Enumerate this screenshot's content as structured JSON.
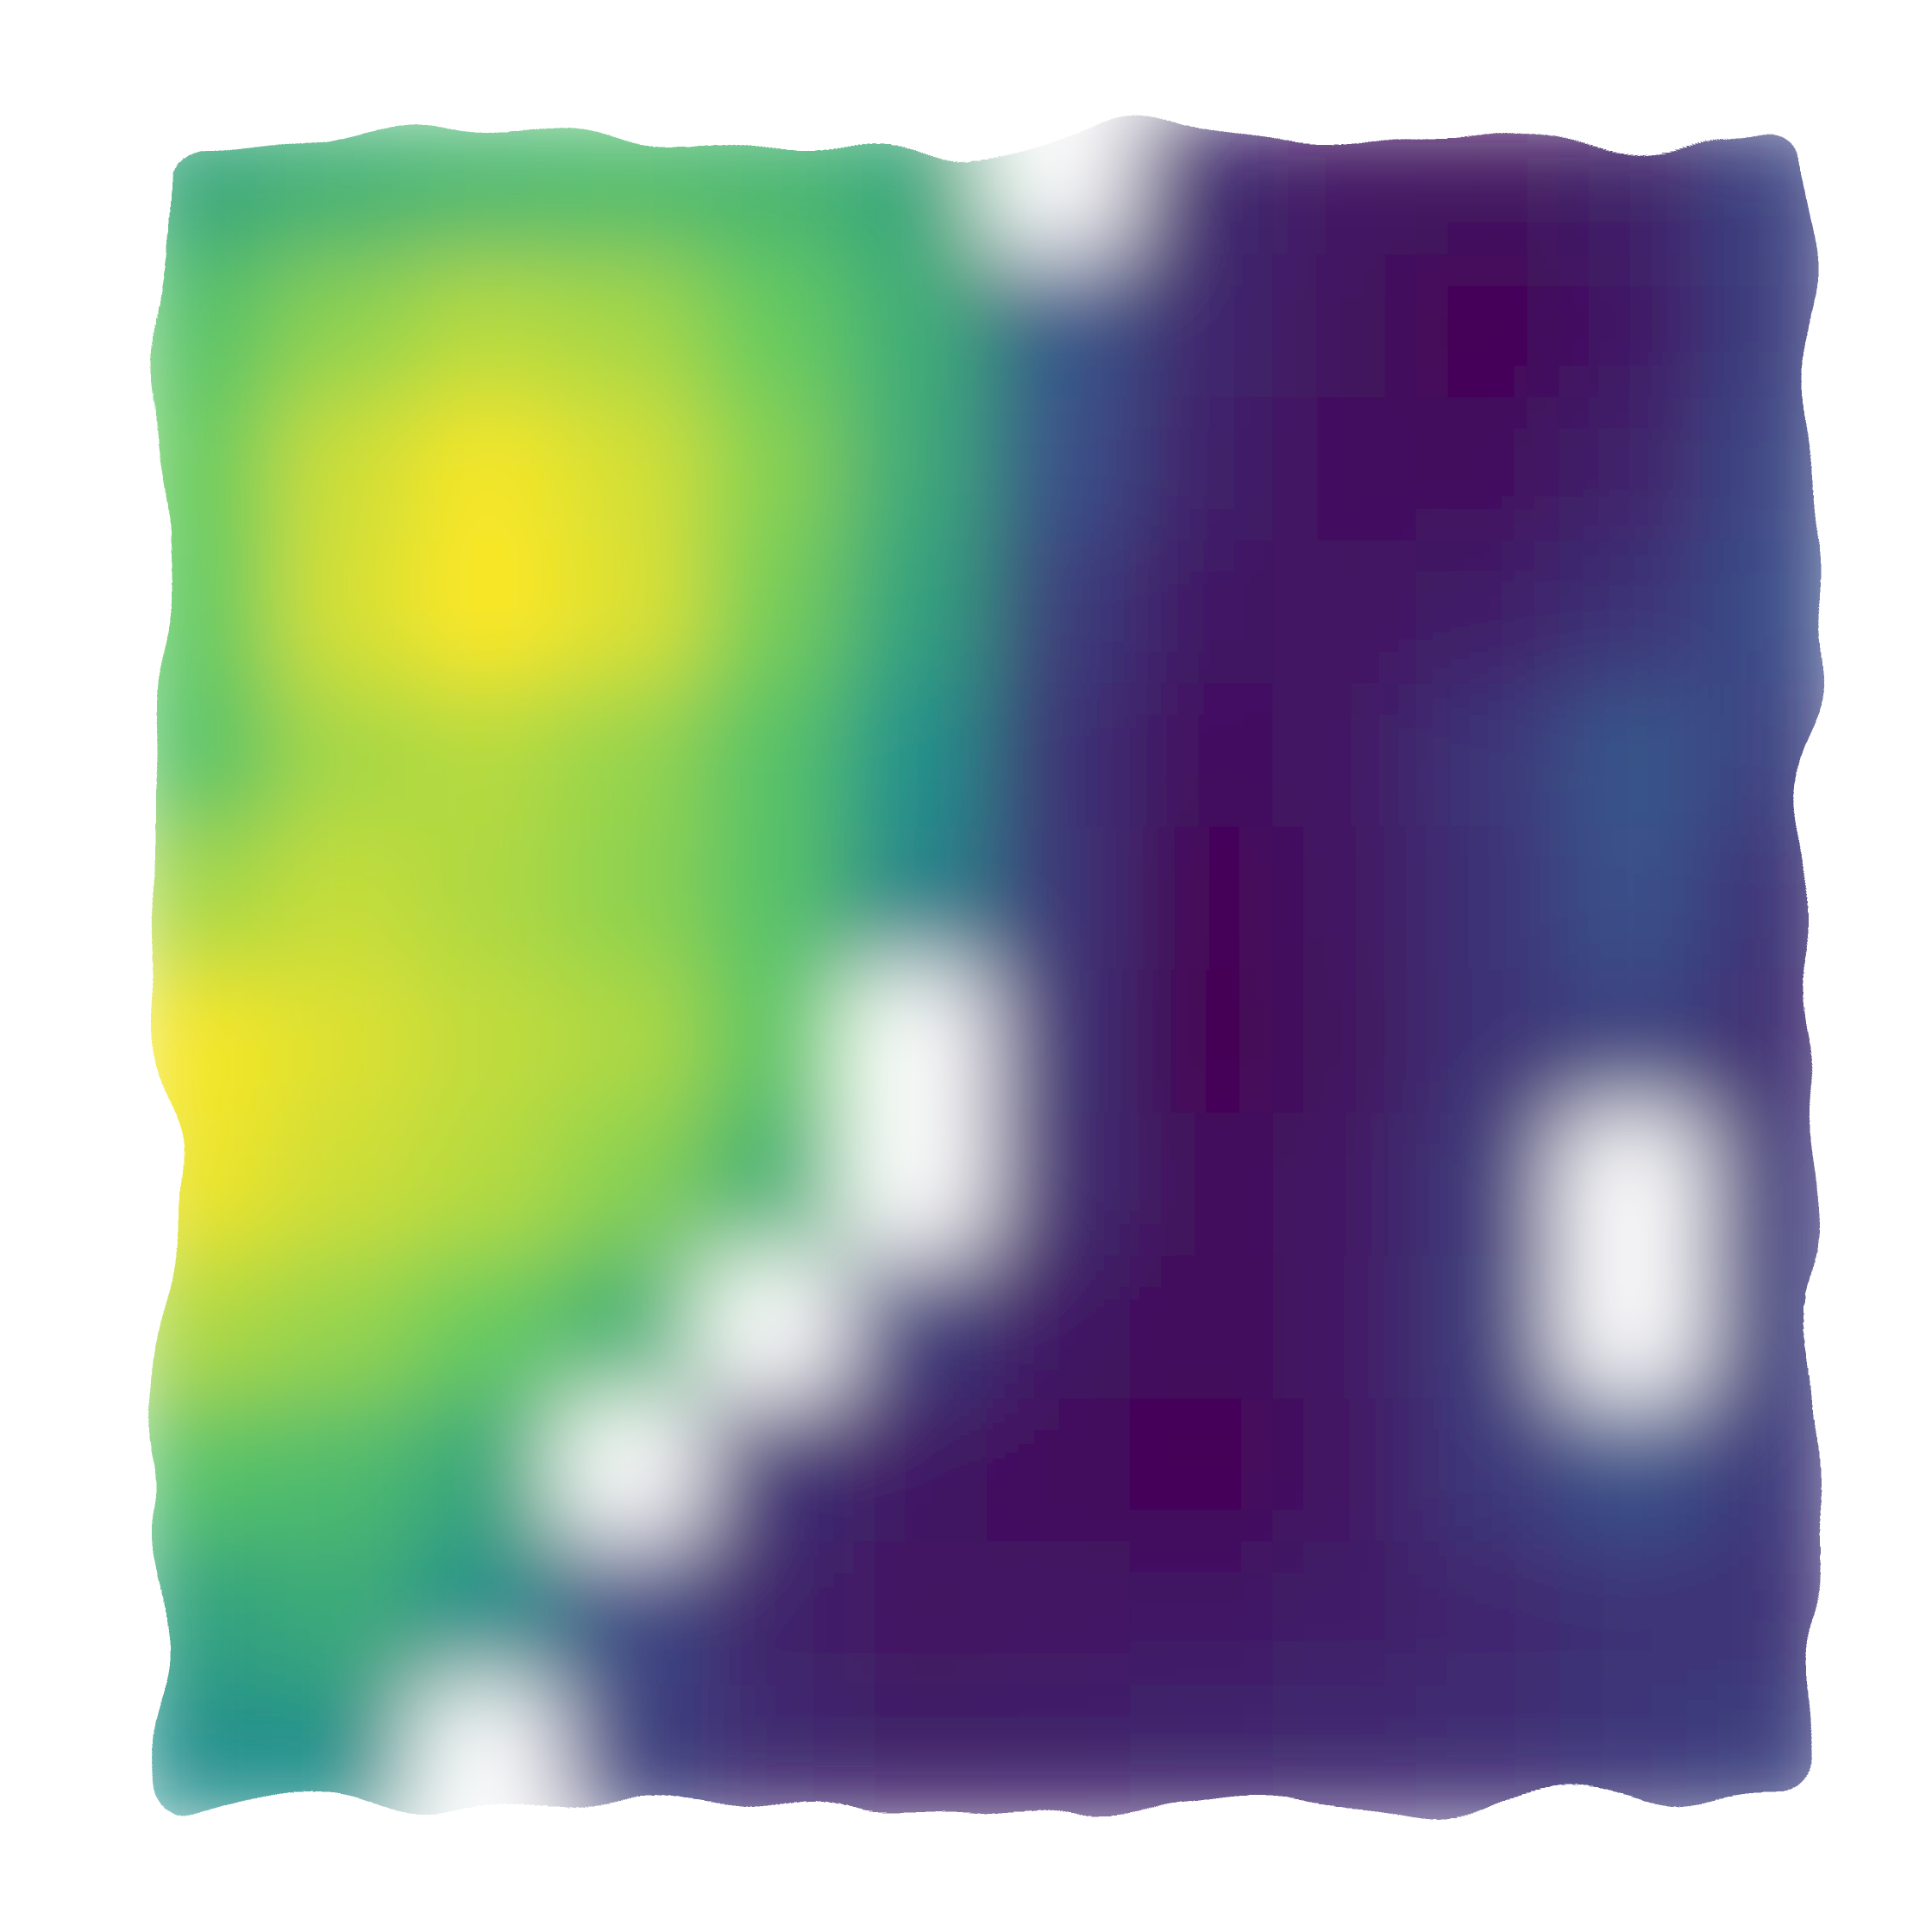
{
  "chart_data": {
    "type": "heatmap",
    "title": "",
    "xlabel": "",
    "ylabel": "",
    "axes_visible": false,
    "grid": false,
    "legend": "none",
    "colormap": "viridis",
    "colormap_stops": [
      "#440154",
      "#3b528b",
      "#21918c",
      "#5ec962",
      "#fde725"
    ],
    "diverging_gap_color": "#ffffff",
    "value_range": [
      -1,
      1
    ],
    "xlim": [
      0,
      1
    ],
    "ylim": [
      0,
      1
    ],
    "grid_size": [
      12,
      12
    ],
    "z": [
      [
        0.35,
        0.42,
        0.48,
        0.5,
        0.46,
        0.35,
        -0.08,
        -0.62,
        -0.8,
        -0.85,
        -0.72,
        -0.38
      ],
      [
        0.55,
        0.72,
        0.82,
        0.78,
        0.62,
        0.4,
        -0.18,
        -0.65,
        -0.85,
        -0.98,
        -0.78,
        -0.42
      ],
      [
        0.62,
        0.88,
        0.98,
        0.9,
        0.7,
        0.38,
        -0.28,
        -0.7,
        -0.86,
        -0.88,
        -0.7,
        -0.35
      ],
      [
        0.6,
        0.9,
        1.0,
        0.92,
        0.66,
        0.32,
        -0.45,
        -0.78,
        -0.82,
        -0.75,
        -0.55,
        -0.3
      ],
      [
        0.55,
        0.78,
        0.82,
        0.74,
        0.55,
        0.2,
        -0.55,
        -0.86,
        -0.8,
        -0.52,
        -0.22,
        -0.4
      ],
      [
        0.78,
        0.86,
        0.8,
        0.72,
        0.55,
        0.12,
        -0.52,
        -0.96,
        -0.82,
        -0.55,
        -0.28,
        -0.55
      ],
      [
        0.98,
        0.92,
        0.85,
        0.8,
        0.58,
        0.08,
        -0.55,
        -1.0,
        -0.85,
        -0.55,
        -0.4,
        -0.6
      ],
      [
        0.96,
        0.88,
        0.82,
        0.7,
        0.42,
        -0.05,
        -0.6,
        -0.9,
        -0.8,
        -0.48,
        -0.1,
        -0.5
      ],
      [
        0.8,
        0.74,
        0.62,
        0.42,
        0.1,
        -0.45,
        -0.78,
        -0.92,
        -0.8,
        -0.45,
        -0.05,
        -0.45
      ],
      [
        0.55,
        0.5,
        0.35,
        -0.1,
        -0.55,
        -0.78,
        -0.9,
        -0.98,
        -0.8,
        -0.5,
        -0.25,
        -0.5
      ],
      [
        0.32,
        0.38,
        0.18,
        -0.35,
        -0.7,
        -0.84,
        -0.8,
        -0.78,
        -0.74,
        -0.65,
        -0.55,
        -0.55
      ],
      [
        0.18,
        0.2,
        0.05,
        -0.4,
        -0.62,
        -0.72,
        -0.7,
        -0.66,
        -0.62,
        -0.58,
        -0.5,
        -0.4
      ]
    ]
  }
}
